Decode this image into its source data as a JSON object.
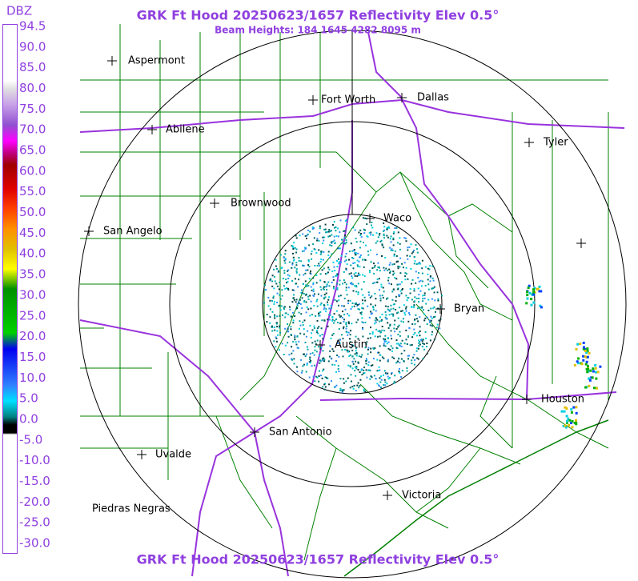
{
  "header": {
    "title": "GRK Ft Hood 20250623/1657 Reflectivity Elev 0.5°",
    "subtitle": "Beam Heights: 184 1645 4282 8095 m"
  },
  "footer": {
    "title": "GRK Ft Hood 20250623/1657 Reflectivity Elev 0.5°"
  },
  "legend": {
    "unit": "DBZ",
    "labels": [
      "94.5",
      "90.0",
      "85.0",
      "80.0",
      "75.0",
      "70.0",
      "65.0",
      "60.0",
      "55.0",
      "50.0",
      "45.0",
      "40.0",
      "35.0",
      "30.0",
      "25.0",
      "20.0",
      "15.0",
      "10.0",
      "5.0",
      "0.0",
      "-5.0",
      "-10.0",
      "-15.0",
      "-20.0",
      "-25.0",
      "-30.0"
    ]
  },
  "cities": [
    {
      "label": "Aspermont"
    },
    {
      "label": "Abilene"
    },
    {
      "label": "Fort Worth"
    },
    {
      "label": "Dallas"
    },
    {
      "label": "Tyler"
    },
    {
      "label": "Brownwood"
    },
    {
      "label": "Waco"
    },
    {
      "label": "San Angelo"
    },
    {
      "label": "Bryan"
    },
    {
      "label": "Austin"
    },
    {
      "label": "Houston"
    },
    {
      "label": "San Antonio"
    },
    {
      "label": "Uvalde"
    },
    {
      "label": "Victoria"
    },
    {
      "label": "Piedras Negras"
    }
  ]
}
